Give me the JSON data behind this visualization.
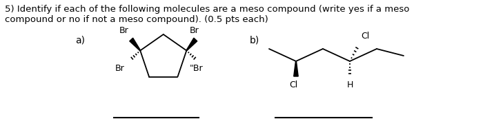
{
  "title_line1": "5) Identify if each of the following molecules are a meso compound (write yes if a meso",
  "title_line2": "compound or no if not a meso compound). (0.5 pts each)",
  "label_a": "a)",
  "label_b": "b)",
  "bg_color": "#ffffff",
  "text_color": "#000000",
  "line_color": "#000000",
  "font_size_title": 9.5,
  "font_size_labels": 10,
  "font_size_atoms": 9
}
